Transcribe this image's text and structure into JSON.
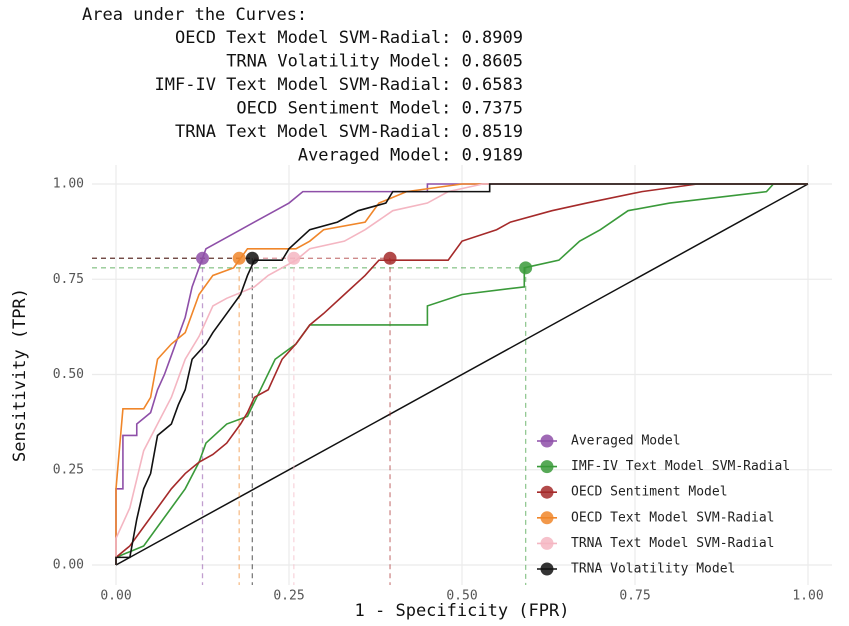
{
  "chart_data": {
    "type": "line",
    "title": "Area under the Curves:",
    "annotation_lines": [
      "OECD Text Model SVM-Radial: 0.8909",
      "TRNA Volatility Model: 0.8605",
      "IMF-IV Text Model SVM-Radial: 0.6583",
      "OECD Sentiment Model: 0.7375",
      "TRNA Text Model SVM-Radial: 0.8519",
      "Averaged Model: 0.9189"
    ],
    "x_label": "1 - Specificity (FPR)",
    "y_label": "Sensitivity (TPR)",
    "xlim": [
      0,
      1
    ],
    "ylim": [
      0,
      1
    ],
    "xticks": [
      {
        "value": 0,
        "label": "0.00"
      },
      {
        "value": 0.25,
        "label": "0.25"
      },
      {
        "value": 0.5,
        "label": "0.50"
      },
      {
        "value": 0.75,
        "label": "0.75"
      },
      {
        "value": 1,
        "label": "1.00"
      }
    ],
    "yticks": [
      {
        "value": 0,
        "label": "0.00"
      },
      {
        "value": 0.25,
        "label": "0.25"
      },
      {
        "value": 0.5,
        "label": "0.50"
      },
      {
        "value": 0.75,
        "label": "0.75"
      },
      {
        "value": 1,
        "label": "1.00"
      }
    ],
    "grid": true,
    "legend_position": "bottom-right",
    "diagonal": {
      "x": [
        0,
        1
      ],
      "y": [
        0,
        1
      ],
      "color": "#111111"
    },
    "series": [
      {
        "name": "Averaged Model",
        "color": "#8e4fa8",
        "x": [
          0,
          0,
          0.01,
          0.01,
          0.03,
          0.03,
          0.05,
          0.06,
          0.07,
          0.08,
          0.09,
          0.1,
          0.11,
          0.12,
          0.13,
          0.15,
          0.17,
          0.2,
          0.23,
          0.25,
          0.27,
          0.45,
          0.45,
          1
        ],
        "y": [
          0,
          0.2,
          0.2,
          0.34,
          0.34,
          0.37,
          0.4,
          0.46,
          0.5,
          0.55,
          0.6,
          0.65,
          0.73,
          0.78,
          0.83,
          0.85,
          0.87,
          0.9,
          0.93,
          0.95,
          0.98,
          0.98,
          1,
          1
        ],
        "cutoff": {
          "x": 0.125,
          "y": 0.805
        }
      },
      {
        "name": "IMF-IV Text Model SVM-Radial",
        "color": "#3a9a3a",
        "x": [
          0,
          0,
          0.04,
          0.06,
          0.08,
          0.1,
          0.12,
          0.13,
          0.16,
          0.19,
          0.23,
          0.26,
          0.28,
          0.45,
          0.45,
          0.5,
          0.59,
          0.59,
          0.64,
          0.67,
          0.7,
          0.74,
          0.8,
          0.94,
          0.95,
          1
        ],
        "y": [
          0,
          0.02,
          0.05,
          0.1,
          0.15,
          0.2,
          0.27,
          0.32,
          0.37,
          0.39,
          0.54,
          0.58,
          0.63,
          0.63,
          0.68,
          0.71,
          0.73,
          0.78,
          0.8,
          0.85,
          0.88,
          0.93,
          0.95,
          0.98,
          1,
          1
        ],
        "cutoff": {
          "x": 0.592,
          "y": 0.78
        }
      },
      {
        "name": "OECD Sentiment Model",
        "color": "#a52a2a",
        "x": [
          0,
          0,
          0.02,
          0.04,
          0.06,
          0.08,
          0.1,
          0.12,
          0.14,
          0.16,
          0.18,
          0.19,
          0.2,
          0.22,
          0.24,
          0.26,
          0.28,
          0.3,
          0.33,
          0.36,
          0.38,
          0.48,
          0.5,
          0.55,
          0.57,
          0.63,
          0.68,
          0.76,
          0.84,
          1
        ],
        "y": [
          0,
          0.02,
          0.05,
          0.1,
          0.15,
          0.2,
          0.24,
          0.27,
          0.29,
          0.32,
          0.37,
          0.4,
          0.44,
          0.46,
          0.54,
          0.58,
          0.63,
          0.66,
          0.71,
          0.76,
          0.8,
          0.8,
          0.85,
          0.88,
          0.9,
          0.93,
          0.95,
          0.98,
          1,
          1
        ],
        "cutoff": {
          "x": 0.396,
          "y": 0.805
        }
      },
      {
        "name": "OECD Text Model SVM-Radial",
        "color": "#f0862a",
        "x": [
          0,
          0,
          0.01,
          0.04,
          0.05,
          0.06,
          0.08,
          0.1,
          0.12,
          0.14,
          0.17,
          0.19,
          0.26,
          0.28,
          0.3,
          0.36,
          0.38,
          0.42,
          0.5,
          1
        ],
        "y": [
          0,
          0.2,
          0.41,
          0.41,
          0.44,
          0.54,
          0.58,
          0.61,
          0.71,
          0.76,
          0.78,
          0.83,
          0.83,
          0.85,
          0.88,
          0.9,
          0.95,
          0.98,
          1,
          1
        ],
        "cutoff": {
          "x": 0.178,
          "y": 0.805
        }
      },
      {
        "name": "TRNA Text Model SVM-Radial",
        "color": "#f4b6c2",
        "x": [
          0,
          0,
          0.02,
          0.04,
          0.06,
          0.08,
          0.1,
          0.12,
          0.14,
          0.16,
          0.2,
          0.22,
          0.26,
          0.28,
          0.33,
          0.36,
          0.4,
          0.45,
          0.48,
          0.53,
          1
        ],
        "y": [
          0,
          0.07,
          0.15,
          0.3,
          0.37,
          0.44,
          0.54,
          0.6,
          0.68,
          0.7,
          0.73,
          0.76,
          0.8,
          0.83,
          0.85,
          0.88,
          0.93,
          0.95,
          0.98,
          1,
          1
        ],
        "cutoff": {
          "x": 0.257,
          "y": 0.805
        }
      },
      {
        "name": "TRNA Volatility Model",
        "color": "#111111",
        "x": [
          0,
          0,
          0.02,
          0.03,
          0.04,
          0.05,
          0.06,
          0.08,
          0.09,
          0.1,
          0.11,
          0.13,
          0.14,
          0.16,
          0.18,
          0.19,
          0.2,
          0.24,
          0.25,
          0.28,
          0.32,
          0.35,
          0.39,
          0.4,
          0.54,
          0.54,
          1
        ],
        "y": [
          0,
          0.02,
          0.02,
          0.12,
          0.2,
          0.24,
          0.34,
          0.37,
          0.42,
          0.46,
          0.54,
          0.58,
          0.61,
          0.66,
          0.71,
          0.76,
          0.8,
          0.8,
          0.83,
          0.88,
          0.9,
          0.93,
          0.95,
          0.98,
          0.98,
          1,
          1
        ],
        "cutoff": {
          "x": 0.197,
          "y": 0.805
        }
      }
    ]
  }
}
